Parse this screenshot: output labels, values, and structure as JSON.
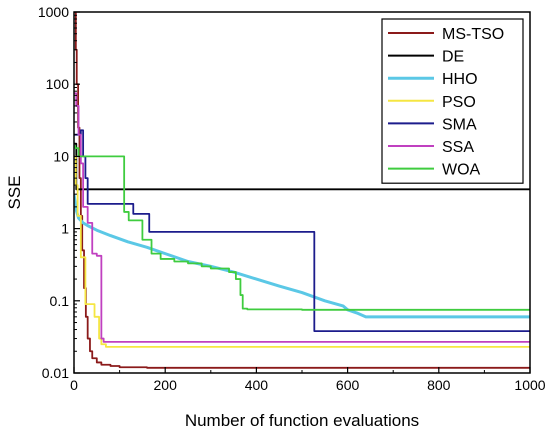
{
  "chart_data": {
    "type": "line",
    "title": "",
    "xlabel": "Number of function evaluations",
    "ylabel": "SSE",
    "xlim": [
      0,
      1000
    ],
    "ylim": [
      0.01,
      1000
    ],
    "yscale": "log",
    "grid": false,
    "legend_position": "top-right",
    "x_ticks": [
      0,
      200,
      400,
      600,
      800,
      1000
    ],
    "x_tick_labels": [
      "0",
      "200",
      "400",
      "600",
      "800",
      "1000"
    ],
    "y_ticks": [
      0.01,
      0.1,
      1,
      10,
      100,
      1000
    ],
    "y_tick_labels": [
      "0.01",
      "0.1",
      "1",
      "10",
      "100",
      "1000"
    ],
    "series": [
      {
        "name": "MS-TSO",
        "color": "#8b1a1a",
        "style": "step",
        "x": [
          0,
          2,
          4,
          6,
          9,
          12,
          15,
          18,
          22,
          26,
          30,
          35,
          40,
          50,
          60,
          80,
          100,
          160,
          1000
        ],
        "y": [
          1000,
          1000,
          300,
          100,
          25,
          5,
          1.5,
          0.5,
          0.15,
          0.06,
          0.03,
          0.02,
          0.016,
          0.014,
          0.013,
          0.0125,
          0.012,
          0.0118,
          0.0118
        ]
      },
      {
        "name": "DE",
        "color": "#000000",
        "style": "step",
        "x": [
          0,
          5,
          1000
        ],
        "y": [
          15,
          3.5,
          3.5
        ]
      },
      {
        "name": "HHO",
        "color": "#5bc8e6",
        "style": "line",
        "x": [
          0,
          5,
          10,
          20,
          30,
          50,
          80,
          120,
          160,
          200,
          250,
          300,
          350,
          400,
          450,
          500,
          550,
          590,
          600,
          620,
          640,
          700,
          800,
          1000
        ],
        "y": [
          3,
          1.8,
          1.4,
          1.2,
          1.1,
          0.95,
          0.8,
          0.65,
          0.55,
          0.45,
          0.35,
          0.3,
          0.25,
          0.2,
          0.16,
          0.13,
          0.1,
          0.085,
          0.075,
          0.068,
          0.06,
          0.06,
          0.06,
          0.06
        ]
      },
      {
        "name": "PSO",
        "color": "#f5e642",
        "style": "step",
        "x": [
          0,
          4,
          8,
          15,
          25,
          35,
          45,
          55,
          60,
          70,
          100,
          1000
        ],
        "y": [
          10,
          4,
          1.5,
          0.4,
          0.09,
          0.09,
          0.06,
          0.03,
          0.025,
          0.023,
          0.023,
          0.023
        ]
      },
      {
        "name": "SMA",
        "color": "#1c1c8c",
        "style": "step",
        "x": [
          0,
          15,
          20,
          25,
          30,
          80,
          130,
          165,
          260,
          400,
          527,
          600,
          1000
        ],
        "y": [
          20,
          23,
          10,
          5,
          2.2,
          2.2,
          1.6,
          0.9,
          0.9,
          0.9,
          0.038,
          0.038,
          0.038
        ]
      },
      {
        "name": "SSA",
        "color": "#c040c0",
        "style": "step",
        "x": [
          0,
          5,
          10,
          15,
          20,
          30,
          40,
          50,
          60,
          65,
          1000
        ],
        "y": [
          75,
          50,
          20,
          8,
          2,
          1.2,
          0.45,
          0.42,
          0.03,
          0.027,
          0.027
        ]
      },
      {
        "name": "WOA",
        "color": "#3fcc3f",
        "style": "step",
        "x": [
          0,
          3,
          10,
          20,
          105,
          110,
          120,
          150,
          170,
          190,
          220,
          250,
          280,
          300,
          320,
          340,
          355,
          365,
          370,
          380,
          500,
          1000
        ],
        "y": [
          14,
          13,
          10,
          10,
          10,
          1.7,
          1.3,
          0.7,
          0.45,
          0.38,
          0.35,
          0.33,
          0.3,
          0.28,
          0.28,
          0.25,
          0.2,
          0.12,
          0.078,
          0.076,
          0.075,
          0.075
        ]
      }
    ]
  }
}
